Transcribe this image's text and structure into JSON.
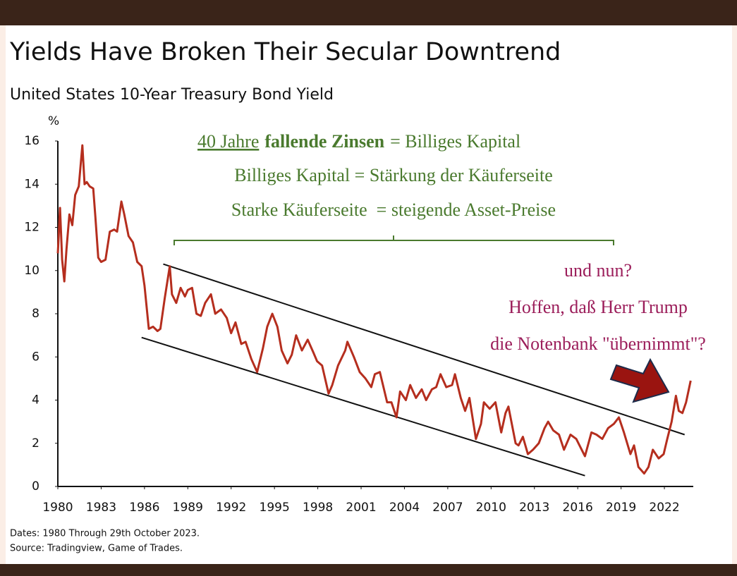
{
  "chart_data": {
    "type": "line",
    "title": "Yields Have Broken Their Secular Downtrend",
    "subtitle": "United States 10-Year Treasury Bond Yield",
    "y_unit": "%",
    "color": "#b52e1e",
    "x": [
      1980.0,
      1980.15,
      1980.3,
      1980.45,
      1980.6,
      1980.8,
      1981.0,
      1981.2,
      1981.45,
      1981.7,
      1981.85,
      1982.0,
      1982.2,
      1982.45,
      1982.6,
      1982.8,
      1983.0,
      1983.3,
      1983.6,
      1983.9,
      1984.1,
      1984.4,
      1984.6,
      1984.9,
      1985.2,
      1985.5,
      1985.8,
      1986.0,
      1986.3,
      1986.6,
      1986.9,
      1987.1,
      1987.4,
      1987.75,
      1987.9,
      1988.2,
      1988.5,
      1988.8,
      1989.0,
      1989.3,
      1989.6,
      1989.9,
      1990.2,
      1990.6,
      1990.9,
      1991.3,
      1991.7,
      1992.0,
      1992.3,
      1992.7,
      1993.0,
      1993.4,
      1993.8,
      1994.2,
      1994.5,
      1994.85,
      1995.2,
      1995.5,
      1995.9,
      1996.2,
      1996.5,
      1996.9,
      1997.3,
      1997.7,
      1997.95,
      1998.3,
      1998.75,
      1999.0,
      1999.4,
      1999.9,
      2000.05,
      2000.5,
      2000.9,
      2001.3,
      2001.7,
      2001.95,
      2002.3,
      2002.8,
      2003.1,
      2003.45,
      2003.7,
      2004.1,
      2004.4,
      2004.8,
      2005.2,
      2005.5,
      2005.9,
      2006.2,
      2006.5,
      2006.9,
      2007.3,
      2007.5,
      2007.9,
      2008.2,
      2008.5,
      2008.95,
      2009.3,
      2009.5,
      2009.9,
      2010.3,
      2010.7,
      2011.0,
      2011.2,
      2011.7,
      2011.9,
      2012.2,
      2012.55,
      2012.9,
      2013.3,
      2013.7,
      2013.95,
      2014.3,
      2014.7,
      2015.05,
      2015.5,
      2015.9,
      2016.2,
      2016.5,
      2016.95,
      2017.3,
      2017.7,
      2018.1,
      2018.5,
      2018.85,
      2019.2,
      2019.65,
      2019.9,
      2020.2,
      2020.6,
      2020.9,
      2021.2,
      2021.6,
      2021.95,
      2022.2,
      2022.5,
      2022.8,
      2023.0,
      2023.25,
      2023.5,
      2023.82
    ],
    "values": [
      10.8,
      12.9,
      10.5,
      9.5,
      11.0,
      12.6,
      12.1,
      13.5,
      13.9,
      15.8,
      14.0,
      14.1,
      13.9,
      13.8,
      12.5,
      10.6,
      10.4,
      10.5,
      11.8,
      11.9,
      11.8,
      13.2,
      12.6,
      11.6,
      11.3,
      10.4,
      10.2,
      9.3,
      7.3,
      7.4,
      7.2,
      7.3,
      8.7,
      10.2,
      8.9,
      8.5,
      9.2,
      8.8,
      9.1,
      9.2,
      8.0,
      7.9,
      8.5,
      8.9,
      8.0,
      8.2,
      7.8,
      7.1,
      7.6,
      6.6,
      6.7,
      5.9,
      5.3,
      6.4,
      7.4,
      8.0,
      7.4,
      6.3,
      5.7,
      6.1,
      7.0,
      6.3,
      6.8,
      6.2,
      5.8,
      5.6,
      4.3,
      4.7,
      5.6,
      6.3,
      6.7,
      6.0,
      5.3,
      5.0,
      4.6,
      5.2,
      5.3,
      3.9,
      3.9,
      3.2,
      4.4,
      4.0,
      4.7,
      4.1,
      4.5,
      4.0,
      4.5,
      4.6,
      5.2,
      4.6,
      4.7,
      5.2,
      4.1,
      3.5,
      4.1,
      2.2,
      2.9,
      3.9,
      3.6,
      3.9,
      2.5,
      3.4,
      3.7,
      2.0,
      1.9,
      2.3,
      1.5,
      1.7,
      2.0,
      2.7,
      3.0,
      2.6,
      2.4,
      1.7,
      2.4,
      2.2,
      1.8,
      1.4,
      2.5,
      2.4,
      2.2,
      2.7,
      2.9,
      3.2,
      2.5,
      1.5,
      1.9,
      0.9,
      0.6,
      0.9,
      1.7,
      1.3,
      1.5,
      2.2,
      3.0,
      4.2,
      3.5,
      3.4,
      3.9,
      4.9
    ],
    "xlim": [
      1980,
      2024
    ],
    "ylim": [
      0,
      16
    ],
    "xticks": [
      1980,
      1983,
      1986,
      1989,
      1992,
      1995,
      1998,
      2001,
      2004,
      2007,
      2010,
      2013,
      2016,
      2019,
      2022
    ],
    "yticks": [
      0,
      2,
      4,
      6,
      8,
      10,
      12,
      14,
      16
    ],
    "trendlines": [
      {
        "x": [
          1987.3,
          2023.4
        ],
        "values": [
          10.3,
          2.4
        ]
      },
      {
        "x": [
          1985.8,
          2016.5
        ],
        "values": [
          6.9,
          0.5
        ]
      }
    ],
    "annotation_green": {
      "line1": {
        "underlined": "40 Jahre",
        "bold": "fallende Zinsen",
        "rest": "= Billiges Kapital"
      },
      "line2": "Billiges Kapital = Stärkung der Käuferseite",
      "line3": "Starke Käuferseite  = steigende Asset-Preise"
    },
    "annotation_red": [
      "und nun?",
      "Hoffen, daß Herr Trump",
      "die Notenbank \"übernimmt\"?"
    ],
    "footnotes": [
      "Dates: 1980 Through 29th October 2023.",
      "Source: Tradingview, Game of Trades."
    ]
  }
}
